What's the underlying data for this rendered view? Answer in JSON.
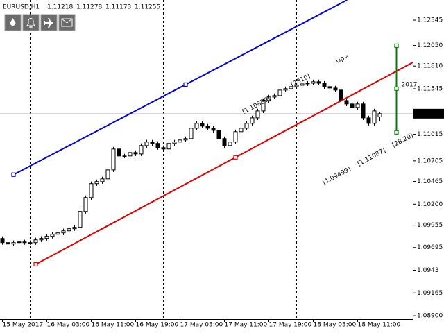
{
  "chart_data": {
    "type": "candlestick",
    "symbol": "EURUSD,H1",
    "categories": [
      "15 May 2017",
      null,
      null,
      null,
      null,
      null,
      null,
      null,
      "16 May 03:00",
      null,
      null,
      null,
      null,
      null,
      null,
      null,
      "16 May 11:00",
      null,
      null,
      null,
      null,
      null,
      null,
      null,
      "16 May 19:00",
      null,
      null,
      null,
      null,
      null,
      null,
      null,
      "17 May 03:00",
      null,
      null,
      null,
      null,
      null,
      null,
      null,
      "17 May 11:00",
      null,
      null,
      null,
      null,
      null,
      null,
      null,
      "17 May 19:00",
      null,
      null,
      null,
      null,
      null,
      null,
      null,
      "18 May 03:00",
      null,
      null,
      null,
      null,
      null,
      null,
      null,
      "18 May 11:00",
      null,
      null,
      null,
      null
    ],
    "open": [
      1.098,
      1.09752,
      1.09736,
      1.09752,
      1.0976,
      1.09752,
      1.09752,
      1.09784,
      1.09801,
      1.09825,
      1.09849,
      1.09865,
      1.09889,
      1.09914,
      1.0993,
      1.10116,
      1.10277,
      1.10439,
      1.10463,
      1.10495,
      1.106,
      1.10843,
      1.10762,
      1.10762,
      1.10802,
      1.10786,
      1.10883,
      1.10924,
      1.10908,
      1.10859,
      1.10843,
      1.10908,
      1.10924,
      1.10948,
      1.10964,
      1.11085,
      1.11142,
      1.1111,
      1.11085,
      1.11061,
      1.10964,
      1.10883,
      1.10924,
      1.11045,
      1.11085,
      1.11142,
      1.11206,
      1.11287,
      1.11408,
      1.11449,
      1.11465,
      1.1153,
      1.11546,
      1.1157,
      1.11586,
      1.11602,
      1.1161,
      1.11627,
      1.1161,
      1.1157,
      1.11554,
      1.1153,
      1.11408,
      1.11368,
      1.11328,
      1.11368,
      1.11206,
      1.11142,
      1.11218
    ],
    "high": [
      1.09825,
      1.09777,
      1.09777,
      1.09785,
      1.09785,
      1.09777,
      1.09809,
      1.09826,
      1.0985,
      1.09874,
      1.0989,
      1.09914,
      1.09939,
      1.09955,
      1.10141,
      1.10302,
      1.10464,
      1.10488,
      1.1052,
      1.10625,
      1.10868,
      1.10868,
      1.10787,
      1.10827,
      1.10827,
      1.10908,
      1.10949,
      1.10949,
      1.10933,
      1.10884,
      1.10933,
      1.10949,
      1.10973,
      1.10989,
      1.1111,
      1.11167,
      1.11167,
      1.11135,
      1.1111,
      1.11086,
      1.10989,
      1.10949,
      1.1107,
      1.1111,
      1.11167,
      1.11231,
      1.11312,
      1.11433,
      1.11474,
      1.1149,
      1.11555,
      1.11571,
      1.11595,
      1.11611,
      1.11627,
      1.11635,
      1.11652,
      1.11652,
      1.11635,
      1.11595,
      1.11579,
      1.11555,
      1.11433,
      1.11393,
      1.11393,
      1.11393,
      1.11231,
      1.11312,
      1.11278
    ],
    "low": [
      1.09727,
      1.09711,
      1.09711,
      1.09727,
      1.09727,
      1.09727,
      1.09727,
      1.09759,
      1.09776,
      1.098,
      1.09824,
      1.0984,
      1.09864,
      1.09889,
      1.09905,
      1.10091,
      1.10252,
      1.10414,
      1.10438,
      1.1047,
      1.10575,
      1.10737,
      1.10737,
      1.10737,
      1.10761,
      1.10761,
      1.10858,
      1.10883,
      1.10834,
      1.10818,
      1.10818,
      1.10883,
      1.10899,
      1.10923,
      1.10939,
      1.1106,
      1.11085,
      1.1106,
      1.11036,
      1.10939,
      1.10858,
      1.10858,
      1.10899,
      1.1102,
      1.1106,
      1.11117,
      1.11181,
      1.11262,
      1.11383,
      1.11424,
      1.1144,
      1.11505,
      1.11521,
      1.11545,
      1.11561,
      1.11577,
      1.11585,
      1.11585,
      1.11545,
      1.11529,
      1.11505,
      1.11383,
      1.11343,
      1.11303,
      1.11303,
      1.11181,
      1.11117,
      1.11117,
      1.11173
    ],
    "close": [
      1.09752,
      1.09736,
      1.09752,
      1.0976,
      1.09752,
      1.09752,
      1.09784,
      1.09801,
      1.09825,
      1.09849,
      1.09865,
      1.09889,
      1.09914,
      1.0993,
      1.10116,
      1.10277,
      1.10439,
      1.10463,
      1.10495,
      1.106,
      1.10843,
      1.10762,
      1.10762,
      1.10802,
      1.10786,
      1.10883,
      1.10924,
      1.10908,
      1.10859,
      1.10843,
      1.10908,
      1.10924,
      1.10948,
      1.10964,
      1.11085,
      1.11142,
      1.1111,
      1.11085,
      1.11061,
      1.10964,
      1.10883,
      1.10924,
      1.11045,
      1.11085,
      1.11142,
      1.11206,
      1.11287,
      1.11408,
      1.11449,
      1.11465,
      1.1153,
      1.11546,
      1.1157,
      1.11586,
      1.11602,
      1.1161,
      1.11627,
      1.1161,
      1.1157,
      1.11554,
      1.1153,
      1.11408,
      1.11368,
      1.11328,
      1.11368,
      1.11206,
      1.11142,
      1.11287,
      1.11255
    ],
    "up_color": "#ffffff",
    "down_color": "#000000",
    "ylim": [
      1.0886,
      1.1258
    ],
    "yticks": [
      1.12345,
      {
        "value": 1.1205,
        "label": "1.12050"
      },
      {
        "value": 1.1181,
        "label": "1.11810"
      },
      1.11545,
      1.11015,
      1.10705,
      1.10465,
      {
        "value": 1.102,
        "label": "1.10200"
      },
      1.09955,
      1.09695,
      1.0943,
      1.09165,
      {
        "value": 1.089,
        "label": "1.08900"
      }
    ],
    "trendlines": [
      {
        "color": "#0000dd",
        "x": [
          2,
          33
        ],
        "y": [
          1.10544,
          1.11594
        ],
        "labels": [
          "[1.10839]",
          "[2810]",
          "Up>"
        ]
      },
      {
        "color": "#dd0000",
        "x": [
          6,
          42
        ],
        "y": [
          1.09499,
          1.10746
        ],
        "labels": [
          "[1.09499]",
          "[1.11087]",
          "[28.20]"
        ]
      }
    ],
    "range": {
      "color": "#008000",
      "x": 71,
      "y": [
        1.11037,
        1.11546,
        1.12047
      ],
      "label": "2017"
    }
  }
}
